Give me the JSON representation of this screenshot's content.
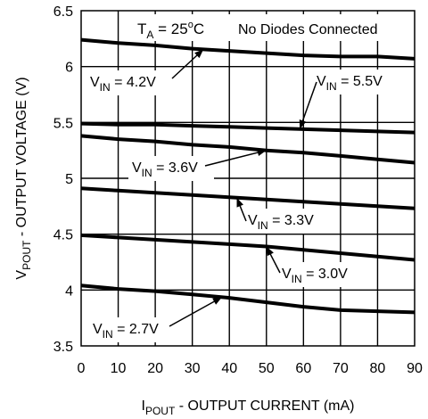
{
  "chart_data": {
    "type": "line",
    "xlabel": {
      "main": "I",
      "sub": "POUT",
      "rest": " - OUTPUT CURRENT (mA)"
    },
    "ylabel": {
      "main": "V",
      "sub": "POUT",
      "rest": " - OUTPUT VOLTAGE (V)"
    },
    "xlim": [
      0,
      90
    ],
    "ylim": [
      3.5,
      6.5
    ],
    "xticks": [
      "0",
      "10",
      "20",
      "30",
      "40",
      "50",
      "60",
      "70",
      "80",
      "90"
    ],
    "yticks": [
      "3.5",
      "4",
      "4.5",
      "5",
      "5.5",
      "6",
      "6.5"
    ],
    "grid": true,
    "annotations": {
      "ta": {
        "main": "T",
        "sub": "A",
        "rest": " = 25",
        "sup": "o",
        "unit": "C"
      },
      "note": "No Diodes Connected"
    },
    "series": [
      {
        "name": "V_IN = 4.2V",
        "label": {
          "main": "V",
          "sub": "IN",
          "rest": " = 4.2V"
        },
        "x": [
          0,
          10,
          20,
          30,
          40,
          50,
          60,
          70,
          80,
          90
        ],
        "y": [
          6.24,
          6.21,
          6.19,
          6.16,
          6.14,
          6.12,
          6.1,
          6.09,
          6.09,
          6.07
        ]
      },
      {
        "name": "V_IN = 5.5V",
        "label": {
          "main": "V",
          "sub": "IN",
          "rest": " = 5.5V"
        },
        "x": [
          0,
          10,
          20,
          30,
          40,
          50,
          60,
          70,
          80,
          90
        ],
        "y": [
          5.49,
          5.48,
          5.48,
          5.47,
          5.46,
          5.45,
          5.44,
          5.43,
          5.42,
          5.41
        ]
      },
      {
        "name": "V_IN = 3.6V",
        "label": {
          "main": "V",
          "sub": "IN",
          "rest": " = 3.6V"
        },
        "x": [
          0,
          10,
          20,
          30,
          40,
          50,
          60,
          70,
          80,
          90
        ],
        "y": [
          5.38,
          5.35,
          5.33,
          5.3,
          5.28,
          5.25,
          5.23,
          5.2,
          5.17,
          5.14
        ]
      },
      {
        "name": "V_IN = 3.3V",
        "label": {
          "main": "V",
          "sub": "IN",
          "rest": " = 3.3V"
        },
        "x": [
          0,
          10,
          20,
          30,
          40,
          50,
          60,
          70,
          80,
          90
        ],
        "y": [
          4.91,
          4.89,
          4.87,
          4.85,
          4.83,
          4.81,
          4.79,
          4.77,
          4.75,
          4.73
        ]
      },
      {
        "name": "V_IN = 3.0V",
        "label": {
          "main": "V",
          "sub": "IN",
          "rest": " = 3.0V"
        },
        "x": [
          0,
          10,
          20,
          30,
          40,
          50,
          60,
          70,
          80,
          90
        ],
        "y": [
          4.49,
          4.47,
          4.45,
          4.43,
          4.41,
          4.39,
          4.36,
          4.33,
          4.3,
          4.27
        ]
      },
      {
        "name": "V_IN = 2.7V",
        "label": {
          "main": "V",
          "sub": "IN",
          "rest": " = 2.7V"
        },
        "x": [
          0,
          10,
          20,
          30,
          40,
          50,
          60,
          70,
          80,
          90
        ],
        "y": [
          4.04,
          4.01,
          3.99,
          3.96,
          3.93,
          3.89,
          3.85,
          3.82,
          3.81,
          3.8
        ]
      }
    ]
  }
}
